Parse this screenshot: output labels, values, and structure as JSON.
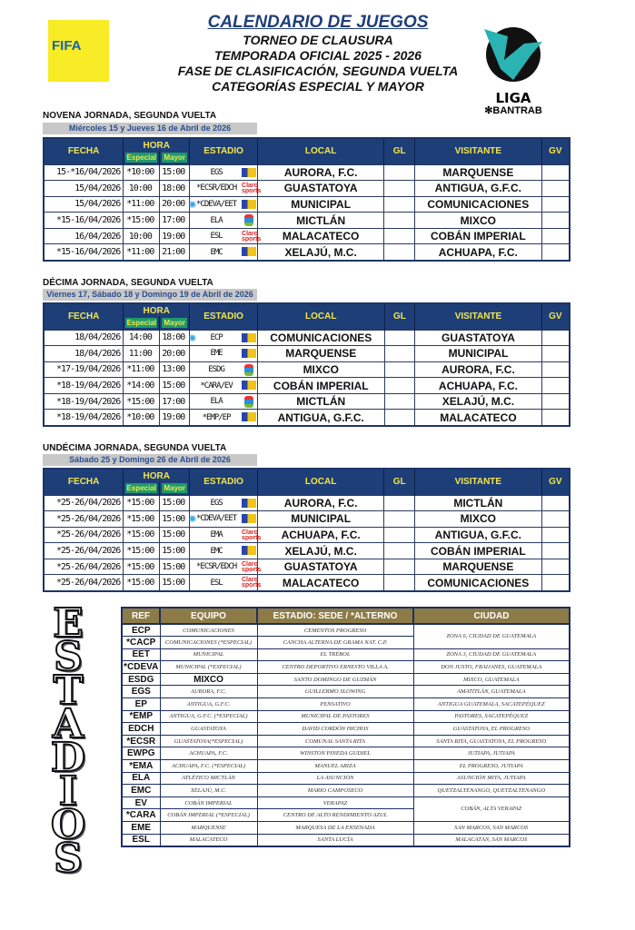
{
  "header": {
    "title": "CALENDARIO DE JUEGOS",
    "lines": [
      "TORNEO DE CLAUSURA",
      "TEMPORADA OFICIAL 2025 - 2026",
      "FASE DE CLASIFICACIÓN, SEGUNDA VUELTA",
      "CATEGORÍAS ESPECIAL Y MAYOR"
    ],
    "fifa_logo": "FIFA",
    "liga_logo": {
      "line1": "LIGA",
      "line2": "BANTRAB"
    }
  },
  "columns": {
    "fecha": "FECHA",
    "hora": "HORA",
    "especial": "Especial",
    "mayor": "Mayor",
    "estadio": "ESTADIO",
    "local": "LOCAL",
    "gl": "GL",
    "visitante": "VISITANTE",
    "gv": "GV"
  },
  "colors": {
    "header_bg": "#1e3e78",
    "header_text": "#f2e64a",
    "subheader_green": "#1e9a6a",
    "stadium_header": "#8d7b47"
  },
  "jornadas": [
    {
      "title": "NOVENA JORNADA, SEGUNDA VUELTA",
      "dates": "Miércoles 15 y Jueves 16 de Abril de 2026",
      "matches": [
        {
          "fecha": "15-*16/04/2026",
          "especial": "*10:00",
          "mayor": "15:00",
          "estadio": "EGS",
          "tv": "tv-sports",
          "local": "AURORA, F.C.",
          "gl": "",
          "visitante": "MARQUENSE",
          "gv": ""
        },
        {
          "fecha": "15/04/2026",
          "especial": "10:00",
          "mayor": "18:00",
          "estadio": "*ECSR/EDCH",
          "tv": "claro-sports",
          "local": "GUASTATOYA",
          "gl": "",
          "visitante": "ANTIGUA, G.F.C.",
          "gv": ""
        },
        {
          "fecha": "15/04/2026",
          "especial": "*11:00",
          "mayor": "20:00",
          "spark": true,
          "estadio": "*CDEVA/EET",
          "tv": "tv-sports",
          "local": "MUNICIPAL",
          "gl": "",
          "visitante": "COMUNICACIONES",
          "gv": ""
        },
        {
          "fecha": "*15-16/04/2026",
          "especial": "*15:00",
          "mayor": "17:00",
          "estadio": "ELA",
          "tv": "guate-tv",
          "local": "MICTLÁN",
          "gl": "",
          "visitante": "MIXCO",
          "gv": ""
        },
        {
          "fecha": "16/04/2026",
          "especial": "10:00",
          "mayor": "19:00",
          "estadio": "ESL",
          "tv": "claro-sports",
          "local": "MALACATECO",
          "gl": "",
          "visitante": "COBÁN IMPERIAL",
          "gv": ""
        },
        {
          "fecha": "*15-16/04/2026",
          "especial": "*11:00",
          "mayor": "21:00",
          "estadio": "EMC",
          "tv": "tv-sports",
          "local": "XELAJÚ, M.C.",
          "gl": "",
          "visitante": "ACHUAPA, F.C.",
          "gv": ""
        }
      ]
    },
    {
      "title": "DÉCIMA JORNADA, SEGUNDA VUELTA",
      "dates": "Viernes 17, Sábado 18 y Domingo 19 de Abril de 2026",
      "matches": [
        {
          "fecha": "18/04/2026",
          "especial": "14:00",
          "mayor": "18:00",
          "spark": true,
          "estadio": "ECP",
          "tv": "tv-sports",
          "local": "COMUNICACIONES",
          "gl": "",
          "visitante": "GUASTATOYA",
          "gv": ""
        },
        {
          "fecha": "18/04/2026",
          "especial": "11:00",
          "mayor": "20:00",
          "estadio": "EME",
          "tv": "tv-sports",
          "local": "MARQUENSE",
          "gl": "",
          "visitante": "MUNICIPAL",
          "gv": ""
        },
        {
          "fecha": "*17-19/04/2026",
          "especial": "*11:00",
          "mayor": "13:00",
          "estadio": "ESDG",
          "tv": "guate-tv",
          "local": "MIXCO",
          "gl": "",
          "visitante": "AURORA, F.C.",
          "gv": ""
        },
        {
          "fecha": "*18-19/04/2026",
          "especial": "*14:00",
          "mayor": "15:00",
          "estadio": "*CARA/EV",
          "tv": "tv-sports",
          "local": "COBÁN IMPERIAL",
          "gl": "",
          "visitante": "ACHUAPA, F.C.",
          "gv": ""
        },
        {
          "fecha": "*18-19/04/2026",
          "especial": "*15:00",
          "mayor": "17:00",
          "estadio": "ELA",
          "tv": "guate-tv",
          "local": "MICTLÁN",
          "gl": "",
          "visitante": "XELAJÚ, M.C.",
          "gv": ""
        },
        {
          "fecha": "*18-19/04/2026",
          "especial": "*10:00",
          "mayor": "19:00",
          "estadio": "*EMP/EP",
          "tv": "tv-sports",
          "local": "ANTIGUA, G.F.C.",
          "gl": "",
          "visitante": "MALACATECO",
          "gv": ""
        }
      ]
    },
    {
      "title": "UNDÉCIMA JORNADA, SEGUNDA VUELTA",
      "dates": "Sábado 25 y Domingo 26 de Abril de 2026",
      "matches": [
        {
          "fecha": "*25-26/04/2026",
          "especial": "*15:00",
          "mayor": "15:00",
          "estadio": "EGS",
          "tv": "tv-sports",
          "local": "AURORA, F.C.",
          "gl": "",
          "visitante": "MICTLÁN",
          "gv": ""
        },
        {
          "fecha": "*25-26/04/2026",
          "especial": "*15:00",
          "mayor": "15:00",
          "spark": true,
          "estadio": "*CDEVA/EET",
          "tv": "tv-sports",
          "local": "MUNICIPAL",
          "gl": "",
          "visitante": "MIXCO",
          "gv": ""
        },
        {
          "fecha": "*25-26/04/2026",
          "especial": "*15:00",
          "mayor": "15:00",
          "estadio": "EMA",
          "tv": "claro-sports",
          "local": "ACHUAPA, F.C.",
          "gl": "",
          "visitante": "ANTIGUA, G.F.C.",
          "gv": ""
        },
        {
          "fecha": "*25-26/04/2026",
          "especial": "*15:00",
          "mayor": "15:00",
          "estadio": "EMC",
          "tv": "tv-sports",
          "local": "XELAJÚ, M.C.",
          "gl": "",
          "visitante": "COBÁN IMPERIAL",
          "gv": ""
        },
        {
          "fecha": "*25-26/04/2026",
          "especial": "*15:00",
          "mayor": "15:00",
          "estadio": "*ECSR/EDCH",
          "tv": "claro-sports",
          "local": "GUASTATOYA",
          "gl": "",
          "visitante": "MARQUENSE",
          "gv": ""
        },
        {
          "fecha": "*25-26/04/2026",
          "especial": "*15:00",
          "mayor": "15:00",
          "estadio": "ESL",
          "tv": "claro-sports",
          "local": "MALACATECO",
          "gl": "",
          "visitante": "COMUNICACIONES",
          "gv": ""
        }
      ]
    }
  ],
  "estadios": {
    "side_label": "ESTADIOS",
    "headers": [
      "REF",
      "EQUIPO",
      "ESTADIO: SEDE / *ALTERNO",
      "CIUDAD"
    ],
    "rows": [
      [
        {
          "t": "ECP"
        },
        {
          "t": "COMUNICACIONES"
        },
        {
          "t": "CEMENTOS PROGRESO"
        },
        {
          "t": "ZONA 6, CIUDAD DE GUATEMALA",
          "rs": 2
        }
      ],
      [
        {
          "t": "*CACP"
        },
        {
          "t": "COMUNICACIONES (*ESPECIAL)"
        },
        {
          "t": "CANCHA ALTERNA DE GRAMA NAT. C.P."
        }
      ],
      [
        {
          "t": "EET"
        },
        {
          "t": "MUNICIPAL"
        },
        {
          "t": "EL TRÉBOL"
        },
        {
          "t": "ZONA 3, CIUDAD DE GUATEMALA"
        }
      ],
      [
        {
          "t": "*CDEVA"
        },
        {
          "t": "MUNICIPAL (*ESPECIAL)"
        },
        {
          "t": "CENTRO DEPORTIVO ERNESTO VILLA A."
        },
        {
          "t": "DON JUSTO, FRAIJANES, GUATEMALA"
        }
      ],
      [
        {
          "t": "ESDG"
        },
        {
          "t": "MIXCO"
        },
        {
          "t": "SANTO DOMINGO DE GUZMÁN"
        },
        {
          "t": "MIXCO, GUATEMALA"
        }
      ],
      [
        {
          "t": "EGS"
        },
        {
          "t": "AURORA, F.C."
        },
        {
          "t": "GUILLERMO SLOWING"
        },
        {
          "t": "AMATITLÁN, GUATEMALA"
        }
      ],
      [
        {
          "t": "EP"
        },
        {
          "t": "ANTIGUA, G.F.C."
        },
        {
          "t": "PENSATIVO",
          "rs": 2
        },
        {
          "t": "ANTIGUA GUATEMALA, SACATEPÉQUEZ",
          "rs": 2
        }
      ],
      [
        {
          "t": "*EMP",
          "rs": 2
        },
        {
          "t": "ANTIGUA, G.F.C. (*ESPECIAL)",
          "rs": 2
        }
      ],
      [
        {
          "t": "MUNICIPAL DE PASTORES"
        },
        {
          "t": "PASTORES, SACATEPÉQUEZ"
        }
      ],
      [
        {
          "t": "EDCH"
        },
        {
          "t": "GUASTATOYA"
        },
        {
          "t": "DAVID CORDÓN HICHOS"
        },
        {
          "t": "GUASTATOYA, EL PROGRESO"
        }
      ],
      [
        {
          "t": "*ECSR"
        },
        {
          "t": "GUASTATOYA(*ESPECIAL)"
        },
        {
          "t": "COMUNAL SANTA RITA"
        },
        {
          "t": "SANTA RITA, GUASTATOYA, EL PROGRESO"
        }
      ],
      [
        {
          "t": "EWPG"
        },
        {
          "t": "ACHUAPA, F.C.",
          "rs": 2
        },
        {
          "t": "WINSTON PINEDA GUDIEL"
        },
        {
          "t": "JUTIAPA, JUTIAPA"
        }
      ],
      [
        {
          "t": "*EMA",
          "rs": 2
        },
        {
          "t": "MANUEL ARIZA",
          "rs": 2
        },
        {
          "t": "EL PROGRESO, JUTIAPA",
          "rs": 2
        }
      ],
      [
        {
          "t": "ACHUAPA, F.C. (*ESPECIAL)"
        }
      ],
      [
        {
          "t": "ELA"
        },
        {
          "t": "ATLÉTICO MICTLÁN"
        },
        {
          "t": "LA ASUNCIÓN"
        },
        {
          "t": "ASUNCIÓN MITA, JUTIAPA"
        }
      ],
      [
        {
          "t": "EMC"
        },
        {
          "t": "XELAJÚ, M.C."
        },
        {
          "t": "MARIO CAMPOSECO"
        },
        {
          "t": "QUETZALTENANGO, QUETZALTENANGO"
        }
      ],
      [
        {
          "t": "EV"
        },
        {
          "t": "COBÁN IMPERIAL"
        },
        {
          "t": "VERAPAZ"
        },
        {
          "t": "COBÁN, ALTA VERAPAZ",
          "rs": 2
        }
      ],
      [
        {
          "t": "*CARA"
        },
        {
          "t": "COBÁN IMPERIAL (*ESPECIAL)"
        },
        {
          "t": "CENTRO DE ALTO RENDIMIENTO AZUL"
        }
      ],
      [
        {
          "t": "EME"
        },
        {
          "t": "MARQUENSE"
        },
        {
          "t": "MARQUESA DE LA ENSENADA"
        },
        {
          "t": "SAN MARCOS, SAN MARCOS"
        }
      ],
      [
        {
          "t": "ESL"
        },
        {
          "t": "MALACATECO"
        },
        {
          "t": "SANTA LUCÍA"
        },
        {
          "t": "MALACATÁN, SAN MARCOS"
        }
      ]
    ]
  }
}
